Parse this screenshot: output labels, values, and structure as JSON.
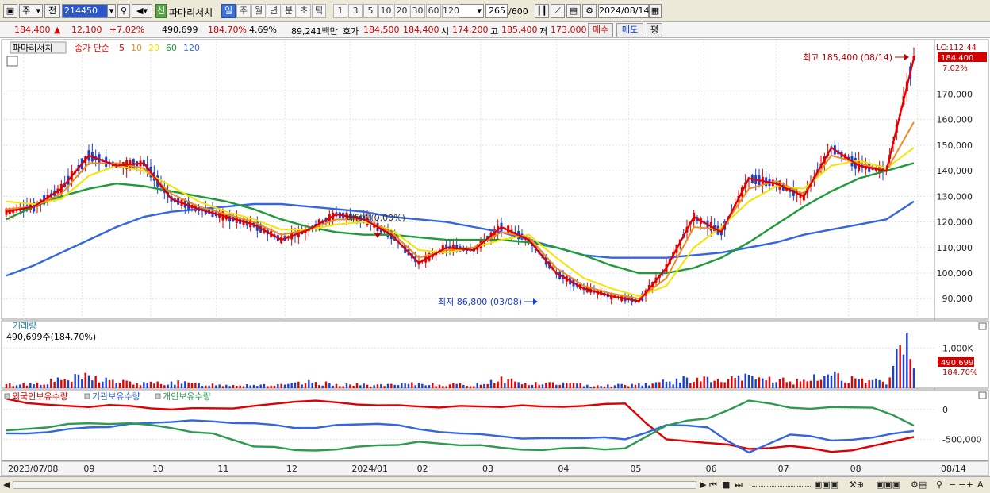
{
  "toolbar": {
    "period_select": "주",
    "prev_label": "전",
    "code_value": "214450",
    "new_badge": "신",
    "stock_name": "파마리서치",
    "periods": [
      "일",
      "주",
      "월",
      "년",
      "분",
      "초",
      "틱"
    ],
    "active_period": "일",
    "intervals": [
      "1",
      "3",
      "5",
      "10",
      "20",
      "30",
      "60",
      "120"
    ],
    "count_value": "265",
    "count_total": "/600",
    "date_value": "2024/08/14"
  },
  "info": {
    "price": "184,400",
    "change": "12,100",
    "change_pct": "+7.02%",
    "volume": "490,699",
    "volume_ratio": "184.70%",
    "turnover_pct": "4.69%",
    "amount": "89,241백만",
    "bid_label": "호가",
    "bid1": "184,500",
    "bid2": "184,400",
    "open_label": "시",
    "open": "174,200",
    "high_label": "고",
    "high": "185,400",
    "low_label": "저",
    "low": "173,000",
    "buy_label": "매수",
    "sell_label": "매도",
    "eval_label": "평"
  },
  "legend": {
    "name": "파마리서치",
    "ma_title": "종가 단순",
    "ma_periods": [
      "5",
      "10",
      "20",
      "60",
      "120"
    ]
  },
  "annotations": {
    "high": "최고 185,400 (08/14)",
    "low": "최저 86,800 (03/08)",
    "dividend": "배당락(0.00%)",
    "lc": "LC:112.44",
    "price_tag": "184,400",
    "pct_tag": "7.02%"
  },
  "volume_panel": {
    "title": "거래량",
    "subtitle": "490,699주(184.70%)",
    "axis": [
      "1,000K"
    ],
    "tag_value": "490,699",
    "tag_pct": "184.70%"
  },
  "holdings_panel": {
    "series": [
      "외국인보유수량",
      "기관보유수량",
      "개인보유수량"
    ],
    "axis": [
      "0",
      "-500,000"
    ]
  },
  "colors": {
    "ma5": "#e00000",
    "ma10": "#f08c1e",
    "ma20": "#f2e600",
    "ma60": "#1f9a3a",
    "ma120": "#3366e0",
    "up": "#e00000",
    "down": "#1a3fd0",
    "foreign": "#e00000",
    "institution": "#3366e0",
    "individual": "#2e9a50"
  },
  "chart_data": [
    {
      "type": "line",
      "title": "파마리서치",
      "x_ticks": [
        "2023/07/08",
        "09",
        "10",
        "11",
        "12",
        "2024/01",
        "02",
        "03",
        "04",
        "05",
        "06",
        "07",
        "08",
        "08/14"
      ],
      "ylim": [
        82000,
        190000
      ],
      "y_ticks": [
        90000,
        100000,
        110000,
        120000,
        130000,
        140000,
        150000,
        160000,
        170000
      ],
      "y_tick_labels": [
        "90,000",
        "100,000",
        "110,000",
        "120,000",
        "130,000",
        "140,000",
        "150,000",
        "160,000",
        "170,000"
      ],
      "x": [
        0,
        8,
        16,
        24,
        32,
        40,
        48,
        56,
        64,
        72,
        80,
        88,
        96,
        104,
        112,
        120,
        128,
        136,
        144,
        152,
        160,
        168,
        176,
        184,
        192,
        200,
        208,
        216,
        224,
        232,
        240,
        248,
        256,
        264
      ],
      "series": [
        {
          "name": "5",
          "values": [
            124000,
            126000,
            133000,
            146000,
            142000,
            143000,
            129000,
            125000,
            122000,
            119000,
            113000,
            117000,
            123000,
            121000,
            115000,
            104000,
            110000,
            109000,
            118000,
            113000,
            100000,
            94000,
            91000,
            89000,
            102000,
            122000,
            116000,
            137000,
            135000,
            130000,
            149000,
            142000,
            140000,
            184000
          ]
        },
        {
          "name": "10",
          "values": [
            125000,
            126000,
            131000,
            143000,
            143000,
            141000,
            131000,
            126000,
            123000,
            120000,
            115000,
            117000,
            121000,
            121000,
            116000,
            106000,
            109000,
            110000,
            116000,
            114000,
            102000,
            95000,
            92000,
            90000,
            98000,
            118000,
            117000,
            133000,
            136000,
            131000,
            146000,
            143000,
            140000,
            159000
          ]
        },
        {
          "name": "20",
          "values": [
            128000,
            127000,
            129000,
            138000,
            142000,
            140000,
            134000,
            128000,
            124000,
            121000,
            117000,
            117000,
            119000,
            120000,
            117000,
            109000,
            108000,
            110000,
            113000,
            115000,
            106000,
            98000,
            94000,
            91000,
            95000,
            110000,
            118000,
            128000,
            134000,
            133000,
            142000,
            144000,
            141000,
            149000
          ]
        },
        {
          "name": "60",
          "values": [
            121000,
            126000,
            130000,
            133000,
            135000,
            134000,
            132000,
            130000,
            128000,
            125000,
            121000,
            118000,
            116000,
            115000,
            115000,
            114000,
            113000,
            113000,
            113000,
            112000,
            110000,
            107000,
            103000,
            100000,
            100000,
            102000,
            106000,
            112000,
            119000,
            126000,
            132000,
            137000,
            140000,
            143000
          ]
        },
        {
          "name": "120",
          "values": [
            99000,
            103000,
            108000,
            113000,
            118000,
            122000,
            124000,
            125000,
            126000,
            127000,
            127000,
            126000,
            125000,
            124000,
            122000,
            121000,
            120000,
            118000,
            116000,
            113000,
            110000,
            107000,
            106000,
            106000,
            106000,
            107000,
            108000,
            110000,
            112000,
            115000,
            117000,
            119000,
            121000,
            128000
          ]
        }
      ]
    },
    {
      "type": "bar",
      "title": "거래량",
      "ylim": [
        0,
        1400000
      ],
      "x": [
        0,
        8,
        16,
        24,
        32,
        40,
        48,
        56,
        64,
        72,
        80,
        88,
        96,
        104,
        112,
        120,
        128,
        136,
        144,
        152,
        160,
        168,
        176,
        184,
        192,
        200,
        208,
        216,
        224,
        232,
        240,
        248,
        256,
        262,
        264
      ],
      "values": [
        90000,
        130000,
        220000,
        310000,
        180000,
        120000,
        160000,
        110000,
        90000,
        100000,
        80000,
        150000,
        110000,
        90000,
        80000,
        120000,
        100000,
        90000,
        260000,
        110000,
        140000,
        90000,
        80000,
        110000,
        170000,
        260000,
        190000,
        300000,
        230000,
        160000,
        420000,
        180000,
        180000,
        1380000,
        490699
      ],
      "ticks": [
        1000000
      ],
      "tick_labels": [
        "1,000K"
      ]
    },
    {
      "type": "line",
      "title": "보유수량",
      "ylim": [
        -800000,
        250000
      ],
      "ticks": [
        0,
        -500000
      ],
      "tick_labels": [
        "0",
        "-500,000"
      ],
      "x": [
        0,
        12,
        24,
        36,
        48,
        60,
        72,
        84,
        96,
        108,
        120,
        132,
        144,
        156,
        168,
        180,
        192,
        204,
        216,
        228,
        240,
        252,
        264
      ],
      "series": [
        {
          "name": "외국인보유수량",
          "values": [
            180000,
            80000,
            40000,
            60000,
            0,
            20000,
            60000,
            130000,
            120000,
            70000,
            50000,
            60000,
            40000,
            50000,
            60000,
            100000,
            -500000,
            -560000,
            -660000,
            -610000,
            -710000,
            -610000,
            -460000
          ]
        },
        {
          "name": "기관보유수량",
          "values": [
            -400000,
            -380000,
            -300000,
            -240000,
            -210000,
            -200000,
            -230000,
            -310000,
            -260000,
            -240000,
            -330000,
            -400000,
            -450000,
            -480000,
            -480000,
            -500000,
            -260000,
            -300000,
            -720000,
            -420000,
            -520000,
            -470000,
            -360000
          ]
        },
        {
          "name": "개인보유수량",
          "values": [
            -350000,
            -300000,
            -230000,
            -230000,
            -310000,
            -400000,
            -620000,
            -680000,
            -670000,
            -600000,
            -540000,
            -600000,
            -640000,
            -680000,
            -640000,
            -650000,
            -270000,
            -150000,
            150000,
            30000,
            40000,
            30000,
            -270000
          ]
        }
      ]
    }
  ]
}
